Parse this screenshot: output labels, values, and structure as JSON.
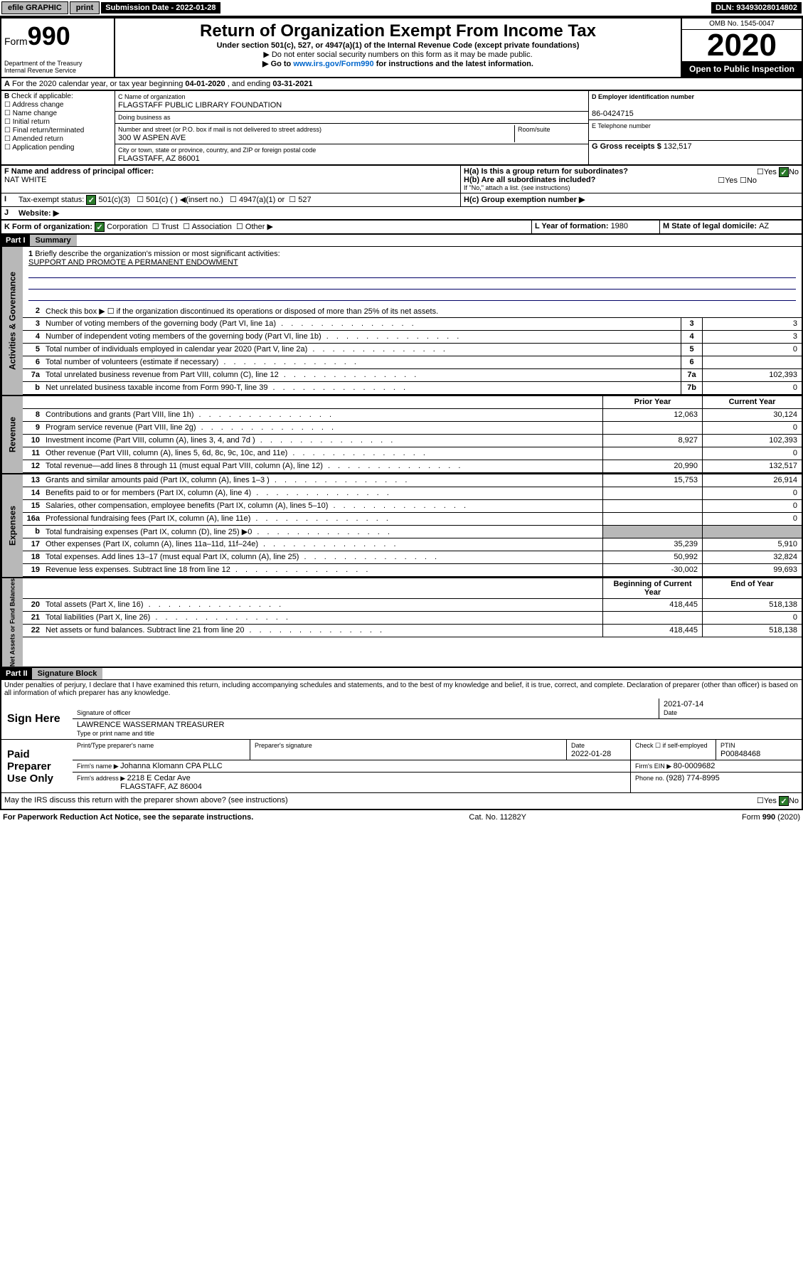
{
  "topbar": {
    "efile": "efile GRAPHIC",
    "print": "print",
    "sub_label": "Submission Date - 2022-01-28",
    "dln": "DLN: 93493028014802"
  },
  "header": {
    "form_prefix": "Form",
    "form_num": "990",
    "dept": "Department of the Treasury\nInternal Revenue Service",
    "title": "Return of Organization Exempt From Income Tax",
    "subtitle1": "Under section 501(c), 527, or 4947(a)(1) of the Internal Revenue Code (except private foundations)",
    "subtitle2": "▶ Do not enter social security numbers on this form as it may be made public.",
    "subtitle3_pre": "▶ Go to ",
    "subtitle3_link": "www.irs.gov/Form990",
    "subtitle3_post": " for instructions and the latest information.",
    "omb": "OMB No. 1545-0047",
    "year": "2020",
    "open": "Open to Public Inspection"
  },
  "row_a": {
    "text_pre": "For the 2020 calendar year, or tax year beginning ",
    "begin": "04-01-2020",
    "mid": " , and ending ",
    "end": "03-31-2021"
  },
  "section_b": {
    "check_label": "Check if applicable:",
    "checks": [
      "Address change",
      "Name change",
      "Initial return",
      "Final return/terminated",
      "Amended return",
      "Application pending"
    ],
    "c_label": "C Name of organization",
    "org_name": "FLAGSTAFF PUBLIC LIBRARY FOUNDATION",
    "dba_label": "Doing business as",
    "addr_label": "Number and street (or P.O. box if mail is not delivered to street address)",
    "room_label": "Room/suite",
    "addr": "300 W ASPEN AVE",
    "city_label": "City or town, state or province, country, and ZIP or foreign postal code",
    "city": "FLAGSTAFF, AZ  86001",
    "d_label": "D Employer identification number",
    "ein": "86-0424715",
    "e_label": "E Telephone number",
    "g_label": "G Gross receipts $ ",
    "g_val": "132,517"
  },
  "section_fh": {
    "f_label": "F  Name and address of principal officer:",
    "officer": "NAT WHITE",
    "ha_label": "H(a)  Is this a group return for subordinates?",
    "hb_label": "H(b)  Are all subordinates included?",
    "hb_note": "If \"No,\" attach a list. (see instructions)",
    "hc_label": "H(c)  Group exemption number ▶",
    "yes": "Yes",
    "no": "No"
  },
  "row_i": {
    "label": "Tax-exempt status:",
    "opt1": "501(c)(3)",
    "opt2": "501(c) (  ) ◀(insert no.)",
    "opt3": "4947(a)(1) or",
    "opt4": "527"
  },
  "row_j": {
    "label": "Website: ▶"
  },
  "row_k": {
    "label": "K Form of organization:",
    "corp": "Corporation",
    "trust": "Trust",
    "assoc": "Association",
    "other": "Other ▶",
    "l_label": "L Year of formation: ",
    "l_val": "1980",
    "m_label": "M State of legal domicile: ",
    "m_val": "AZ"
  },
  "part1": {
    "hdr": "Part I",
    "title": "Summary",
    "q1": "Briefly describe the organization's mission or most significant activities:",
    "mission": "SUPPORT AND PROMOTE A PERMANENT ENDOWMENT",
    "q2": "Check this box ▶ ☐  if the organization discontinued its operations or disposed of more than 25% of its net assets.",
    "prior_hdr": "Prior Year",
    "current_hdr": "Current Year",
    "begin_hdr": "Beginning of Current Year",
    "end_hdr": "End of Year",
    "vtab1": "Activities & Governance",
    "vtab2": "Revenue",
    "vtab3": "Expenses",
    "vtab4": "Net Assets or Fund Balances",
    "lines_gov": [
      {
        "n": "3",
        "d": "Number of voting members of the governing body (Part VI, line 1a)",
        "c": "3",
        "v": "3"
      },
      {
        "n": "4",
        "d": "Number of independent voting members of the governing body (Part VI, line 1b)",
        "c": "4",
        "v": "3"
      },
      {
        "n": "5",
        "d": "Total number of individuals employed in calendar year 2020 (Part V, line 2a)",
        "c": "5",
        "v": "0"
      },
      {
        "n": "6",
        "d": "Total number of volunteers (estimate if necessary)",
        "c": "6",
        "v": ""
      },
      {
        "n": "7a",
        "d": "Total unrelated business revenue from Part VIII, column (C), line 12",
        "c": "7a",
        "v": "102,393"
      },
      {
        "n": "b",
        "d": "Net unrelated business taxable income from Form 990-T, line 39",
        "c": "7b",
        "v": "0"
      }
    ],
    "lines_rev": [
      {
        "n": "8",
        "d": "Contributions and grants (Part VIII, line 1h)",
        "p": "12,063",
        "c": "30,124"
      },
      {
        "n": "9",
        "d": "Program service revenue (Part VIII, line 2g)",
        "p": "",
        "c": "0"
      },
      {
        "n": "10",
        "d": "Investment income (Part VIII, column (A), lines 3, 4, and 7d )",
        "p": "8,927",
        "c": "102,393"
      },
      {
        "n": "11",
        "d": "Other revenue (Part VIII, column (A), lines 5, 6d, 8c, 9c, 10c, and 11e)",
        "p": "",
        "c": "0"
      },
      {
        "n": "12",
        "d": "Total revenue—add lines 8 through 11 (must equal Part VIII, column (A), line 12)",
        "p": "20,990",
        "c": "132,517"
      }
    ],
    "lines_exp": [
      {
        "n": "13",
        "d": "Grants and similar amounts paid (Part IX, column (A), lines 1–3 )",
        "p": "15,753",
        "c": "26,914"
      },
      {
        "n": "14",
        "d": "Benefits paid to or for members (Part IX, column (A), line 4)",
        "p": "",
        "c": "0"
      },
      {
        "n": "15",
        "d": "Salaries, other compensation, employee benefits (Part IX, column (A), lines 5–10)",
        "p": "",
        "c": "0"
      },
      {
        "n": "16a",
        "d": "Professional fundraising fees (Part IX, column (A), line 11e)",
        "p": "",
        "c": "0"
      },
      {
        "n": "b",
        "d": "Total fundraising expenses (Part IX, column (D), line 25) ▶0",
        "p": "grey",
        "c": "grey"
      },
      {
        "n": "17",
        "d": "Other expenses (Part IX, column (A), lines 11a–11d, 11f–24e)",
        "p": "35,239",
        "c": "5,910"
      },
      {
        "n": "18",
        "d": "Total expenses. Add lines 13–17 (must equal Part IX, column (A), line 25)",
        "p": "50,992",
        "c": "32,824"
      },
      {
        "n": "19",
        "d": "Revenue less expenses. Subtract line 18 from line 12",
        "p": "-30,002",
        "c": "99,693"
      }
    ],
    "lines_net": [
      {
        "n": "20",
        "d": "Total assets (Part X, line 16)",
        "p": "418,445",
        "c": "518,138"
      },
      {
        "n": "21",
        "d": "Total liabilities (Part X, line 26)",
        "p": "",
        "c": "0"
      },
      {
        "n": "22",
        "d": "Net assets or fund balances. Subtract line 21 from line 20",
        "p": "418,445",
        "c": "518,138"
      }
    ]
  },
  "part2": {
    "hdr": "Part II",
    "title": "Signature Block",
    "decl": "Under penalties of perjury, I declare that I have examined this return, including accompanying schedules and statements, and to the best of my knowledge and belief, it is true, correct, and complete. Declaration of preparer (other than officer) is based on all information of which preparer has any knowledge.",
    "sign_here": "Sign Here",
    "sig_officer": "Signature of officer",
    "sig_date": "2021-07-14",
    "date_label": "Date",
    "officer_name": "LAWRENCE WASSERMAN  TREASURER",
    "type_label": "Type or print name and title",
    "paid": "Paid Preparer Use Only",
    "prep_name_label": "Print/Type preparer's name",
    "prep_sig_label": "Preparer's signature",
    "prep_date_label": "Date",
    "prep_date": "2022-01-28",
    "check_self": "Check ☐ if self-employed",
    "ptin_label": "PTIN",
    "ptin": "P00848468",
    "firm_name_label": "Firm's name    ▶ ",
    "firm_name": "Johanna Klomann CPA PLLC",
    "firm_ein_label": "Firm's EIN ▶ ",
    "firm_ein": "80-0009682",
    "firm_addr_label": "Firm's address ▶ ",
    "firm_addr": "2218 E Cedar Ave",
    "firm_city": "FLAGSTAFF, AZ  86004",
    "phone_label": "Phone no. ",
    "phone": "(928) 774-8995",
    "discuss": "May the IRS discuss this return with the preparer shown above? (see instructions)"
  },
  "footer": {
    "pra": "For Paperwork Reduction Act Notice, see the separate instructions.",
    "cat": "Cat. No. 11282Y",
    "form": "Form 990 (2020)"
  }
}
